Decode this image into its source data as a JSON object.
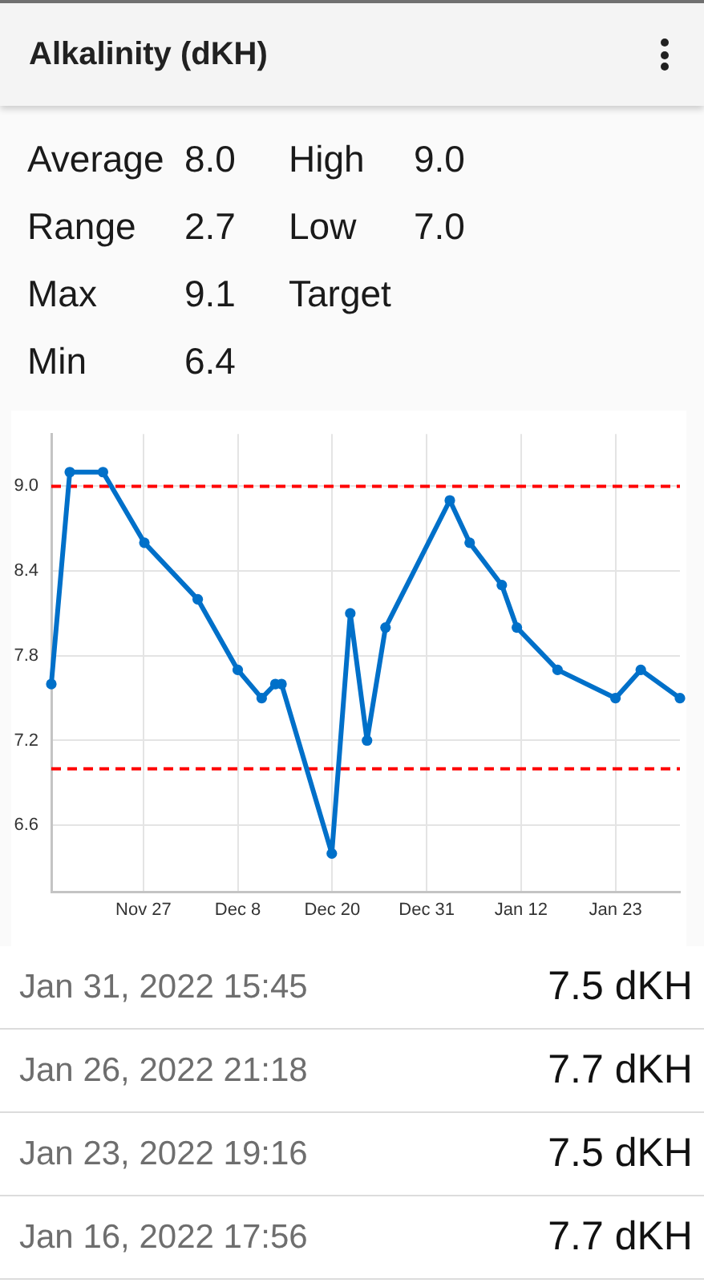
{
  "chart_data": {
    "type": "line",
    "title": "Alkalinity (dKH)",
    "x": [
      "2021-11-16T02:00",
      "2021-11-18T08:00",
      "2021-11-22T09:00",
      "2021-11-27T10:00",
      "2021-12-03T22:00",
      "2021-12-08T19:00",
      "2021-12-11T17:00",
      "2021-12-13T09:00",
      "2021-12-14T03:00",
      "2021-12-20T06:00",
      "2021-12-22T12:00",
      "2021-12-24T13:00",
      "2021-12-26T19:00",
      "2022-01-03T15:00",
      "2022-01-06T01:00",
      "2022-01-09T23:00",
      "2022-01-11T19:00",
      "2022-01-16T17:56",
      "2022-01-23T19:16",
      "2022-01-26T21:18",
      "2022-01-31T15:45"
    ],
    "values": [
      7.6,
      9.1,
      9.1,
      8.6,
      8.2,
      7.7,
      7.5,
      7.6,
      7.6,
      6.4,
      8.1,
      7.2,
      8.0,
      8.9,
      8.6,
      8.3,
      8.0,
      7.7,
      7.5,
      7.7,
      7.5
    ],
    "color": "#0070c9",
    "xlim": [
      "2021-11-16T02:00",
      "2022-01-31T15:45"
    ],
    "xticks": [
      {
        "value": "2021-11-27T07:16",
        "label": "Nov 27"
      },
      {
        "value": "2021-12-08T19:16",
        "label": "Dec 8"
      },
      {
        "value": "2021-12-20T07:16",
        "label": "Dec 20"
      },
      {
        "value": "2021-12-31T19:16",
        "label": "Dec 31"
      },
      {
        "value": "2022-01-12T07:16",
        "label": "Jan 12"
      },
      {
        "value": "2022-01-23T19:16",
        "label": "Jan 23"
      }
    ],
    "ylim": [
      6.13,
      9.37
    ],
    "yticks": [
      6.6,
      7.2,
      7.8,
      8.4,
      {
        "value": 9,
        "label": "9.0"
      }
    ],
    "grid": true,
    "marker": "circle",
    "ref_lines": [
      {
        "axis": "y",
        "value": 9,
        "color": "#ff0000",
        "line_style": "dashed"
      },
      {
        "axis": "y",
        "value": 7,
        "color": "#ff0000",
        "line_style": "dashed"
      }
    ],
    "annotations": [
      "Average",
      "8.0",
      "High",
      "9.0",
      "Range",
      "2.7",
      "Low",
      "7.0",
      "Max",
      "9.1",
      "Target",
      "Min",
      "6.4",
      "Jan 31, 2022 15:45",
      "7.5 dKH",
      "Jan 26, 2022 21:18",
      "7.7 dKH",
      "Jan 23, 2022 19:16",
      "7.5 dKH",
      "Jan 16, 2022 17:56",
      "7.7 dKH"
    ]
  }
}
